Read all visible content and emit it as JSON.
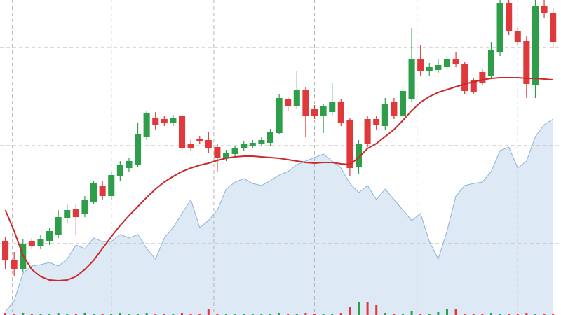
{
  "chart_data": {
    "type": "candlestick",
    "xlim": [
      -0.6,
      62.9
    ],
    "ylim": [
      0,
      450
    ],
    "grid": true,
    "grid_x": [
      0.8,
      12,
      23.6,
      35,
      46.6,
      58
    ],
    "grid_y": [
      102,
      242,
      382
    ],
    "up_color": "#2e9e4a",
    "down_color": "#e0393b",
    "ma_color": "#cc2a2a",
    "area_color": "#dde9f5",
    "area_line_color": "#8db2da",
    "open": [
      105,
      78,
      65,
      105,
      98,
      105,
      115,
      138,
      152,
      145,
      162,
      185,
      170,
      198,
      210,
      215,
      255,
      282,
      280,
      275,
      284,
      245,
      252,
      250,
      240,
      225,
      230,
      238,
      242,
      245,
      246,
      260,
      308,
      298,
      322,
      295,
      285,
      290,
      304,
      278,
      212,
      280,
      280,
      270,
      305,
      285,
      308,
      365,
      348,
      350,
      354,
      366,
      358,
      335,
      347,
      342,
      375,
      445,
      405,
      392,
      328,
      442,
      432
    ],
    "high": [
      112,
      90,
      108,
      110,
      114,
      125,
      150,
      158,
      158,
      170,
      192,
      192,
      205,
      220,
      225,
      275,
      292,
      290,
      285,
      286,
      286,
      250,
      256,
      262,
      245,
      236,
      242,
      248,
      250,
      254,
      266,
      315,
      312,
      348,
      326,
      300,
      302,
      332,
      308,
      282,
      250,
      285,
      285,
      310,
      310,
      325,
      410,
      385,
      360,
      365,
      370,
      375,
      362,
      338,
      352,
      390,
      450,
      450,
      410,
      398,
      450,
      450,
      438
    ],
    "low": [
      65,
      55,
      62,
      94,
      94,
      100,
      110,
      132,
      115,
      140,
      158,
      165,
      165,
      192,
      205,
      212,
      250,
      265,
      270,
      270,
      235,
      235,
      244,
      232,
      205,
      220,
      226,
      234,
      238,
      241,
      242,
      258,
      292,
      295,
      255,
      280,
      260,
      285,
      270,
      198,
      202,
      240,
      265,
      265,
      280,
      282,
      305,
      342,
      342,
      346,
      350,
      354,
      315,
      315,
      328,
      338,
      370,
      400,
      385,
      310,
      310,
      425,
      382
    ],
    "close": [
      78,
      65,
      102,
      99,
      108,
      120,
      140,
      150,
      140,
      165,
      188,
      170,
      200,
      214,
      220,
      258,
      288,
      272,
      275,
      282,
      238,
      238,
      248,
      238,
      225,
      232,
      238,
      244,
      246,
      250,
      262,
      310,
      298,
      322,
      285,
      285,
      298,
      305,
      275,
      210,
      245,
      245,
      272,
      302,
      285,
      320,
      365,
      348,
      354,
      357,
      366,
      358,
      320,
      318,
      332,
      378,
      445,
      405,
      390,
      330,
      442,
      432,
      390
    ],
    "volume": [
      3,
      2,
      3,
      2,
      2,
      2,
      3,
      2,
      2,
      3,
      2,
      2,
      2,
      3,
      2,
      2,
      3,
      2,
      2,
      2,
      3,
      2,
      2,
      9,
      2,
      2,
      2,
      2,
      2,
      2,
      2,
      3,
      2,
      2,
      3,
      2,
      2,
      2,
      3,
      12,
      18,
      18,
      14,
      3,
      2,
      2,
      5,
      2,
      2,
      4,
      8,
      9,
      2,
      2,
      2,
      3,
      2,
      2,
      2,
      3,
      2,
      2,
      2
    ],
    "ma": [
      150,
      120,
      85,
      65,
      55,
      50,
      49,
      50,
      55,
      65,
      78,
      95,
      112,
      128,
      142,
      155,
      168,
      180,
      190,
      198,
      205,
      210,
      214,
      217,
      221,
      224,
      226,
      227,
      227,
      226,
      225,
      224,
      222,
      220,
      218,
      217,
      218,
      218,
      216,
      215,
      225,
      238,
      245,
      255,
      265,
      278,
      292,
      304,
      312,
      318,
      322,
      326,
      330,
      333,
      336,
      338,
      339,
      339,
      339,
      338,
      338,
      337,
      336
    ],
    "area": [
      5,
      20,
      60,
      70,
      72,
      75,
      70,
      80,
      100,
      95,
      110,
      105,
      105,
      115,
      110,
      115,
      95,
      80,
      110,
      125,
      145,
      165,
      125,
      135,
      150,
      180,
      190,
      195,
      188,
      185,
      192,
      200,
      205,
      215,
      220,
      225,
      230,
      220,
      210,
      188,
      175,
      185,
      165,
      180,
      165,
      150,
      135,
      145,
      105,
      80,
      120,
      170,
      185,
      188,
      190,
      205,
      235,
      240,
      210,
      220,
      255,
      272,
      280
    ]
  }
}
